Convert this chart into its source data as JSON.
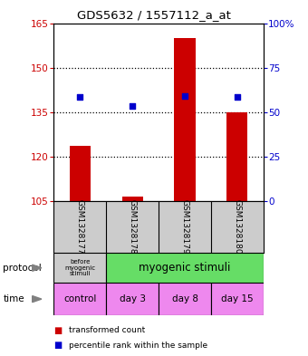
{
  "title": "GDS5632 / 1557112_a_at",
  "samples": [
    "GSM1328177",
    "GSM1328178",
    "GSM1328179",
    "GSM1328180"
  ],
  "bar_values": [
    123.5,
    106.5,
    160.0,
    135.0
  ],
  "bar_base": 105,
  "blue_values": [
    140.0,
    137.0,
    140.5,
    140.0
  ],
  "ylim_left": [
    105,
    165
  ],
  "ylim_right": [
    0,
    100
  ],
  "yticks_left": [
    105,
    120,
    135,
    150,
    165
  ],
  "yticks_right": [
    0,
    25,
    50,
    75,
    100
  ],
  "bar_color": "#cc0000",
  "blue_color": "#0000cc",
  "bg_color": "#ffffff",
  "protocol_labels": [
    "before\nmyogenic\nstimuli",
    "myogenic stimuli"
  ],
  "protocol_colors": [
    "#cccccc",
    "#66dd66"
  ],
  "time_labels": [
    "control",
    "day 3",
    "day 8",
    "day 15"
  ],
  "time_color": "#ee88ee",
  "legend_red": "transformed count",
  "legend_blue": "percentile rank within the sample",
  "sample_bg": "#cccccc",
  "left_label_color": "#cc0000",
  "right_label_color": "#0000cc",
  "gridline_ticks": [
    120,
    135,
    150
  ]
}
